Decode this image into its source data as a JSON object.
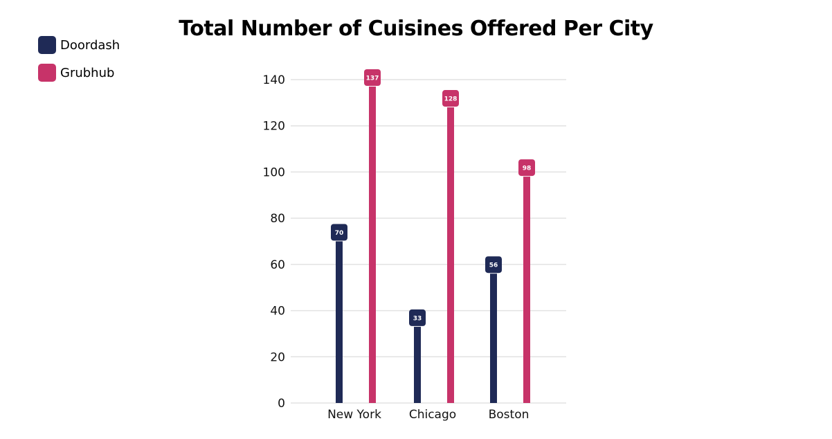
{
  "chart_data": {
    "type": "bar",
    "title": "Total Number of Cuisines Offered Per City",
    "categories": [
      "New York",
      "Chicago",
      "Boston"
    ],
    "series": [
      {
        "name": "Doordash",
        "color": "#1f2a56",
        "values": [
          70,
          33,
          56
        ]
      },
      {
        "name": "Grubhub",
        "color": "#c73369",
        "values": [
          137,
          128,
          98
        ]
      }
    ],
    "ylim": [
      0,
      140
    ],
    "yticks": [
      0,
      20,
      40,
      60,
      80,
      100,
      120,
      140
    ],
    "grid": true,
    "legend_position": "top-left"
  }
}
